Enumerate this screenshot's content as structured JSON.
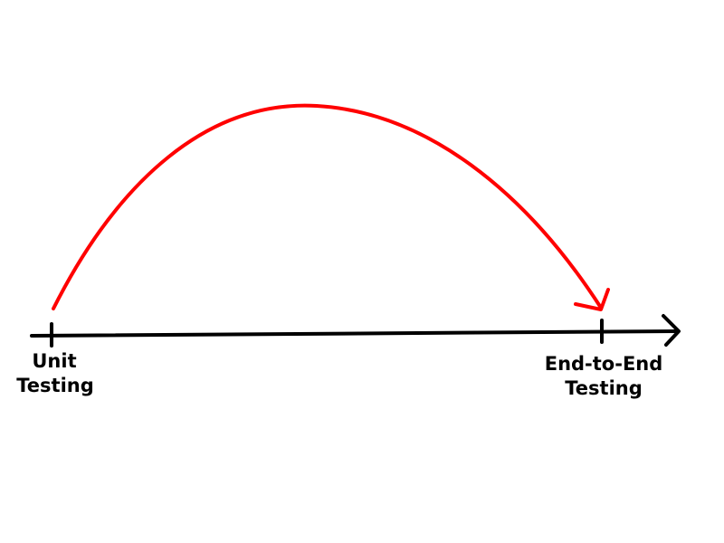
{
  "diagram": {
    "start_label": {
      "line1": "Unit",
      "line2": "Testing"
    },
    "end_label": {
      "line1": "End-to-End",
      "line2": "Testing"
    },
    "colors": {
      "axis": "#000000",
      "arc": "#ff0000",
      "background": "#ffffff"
    }
  }
}
